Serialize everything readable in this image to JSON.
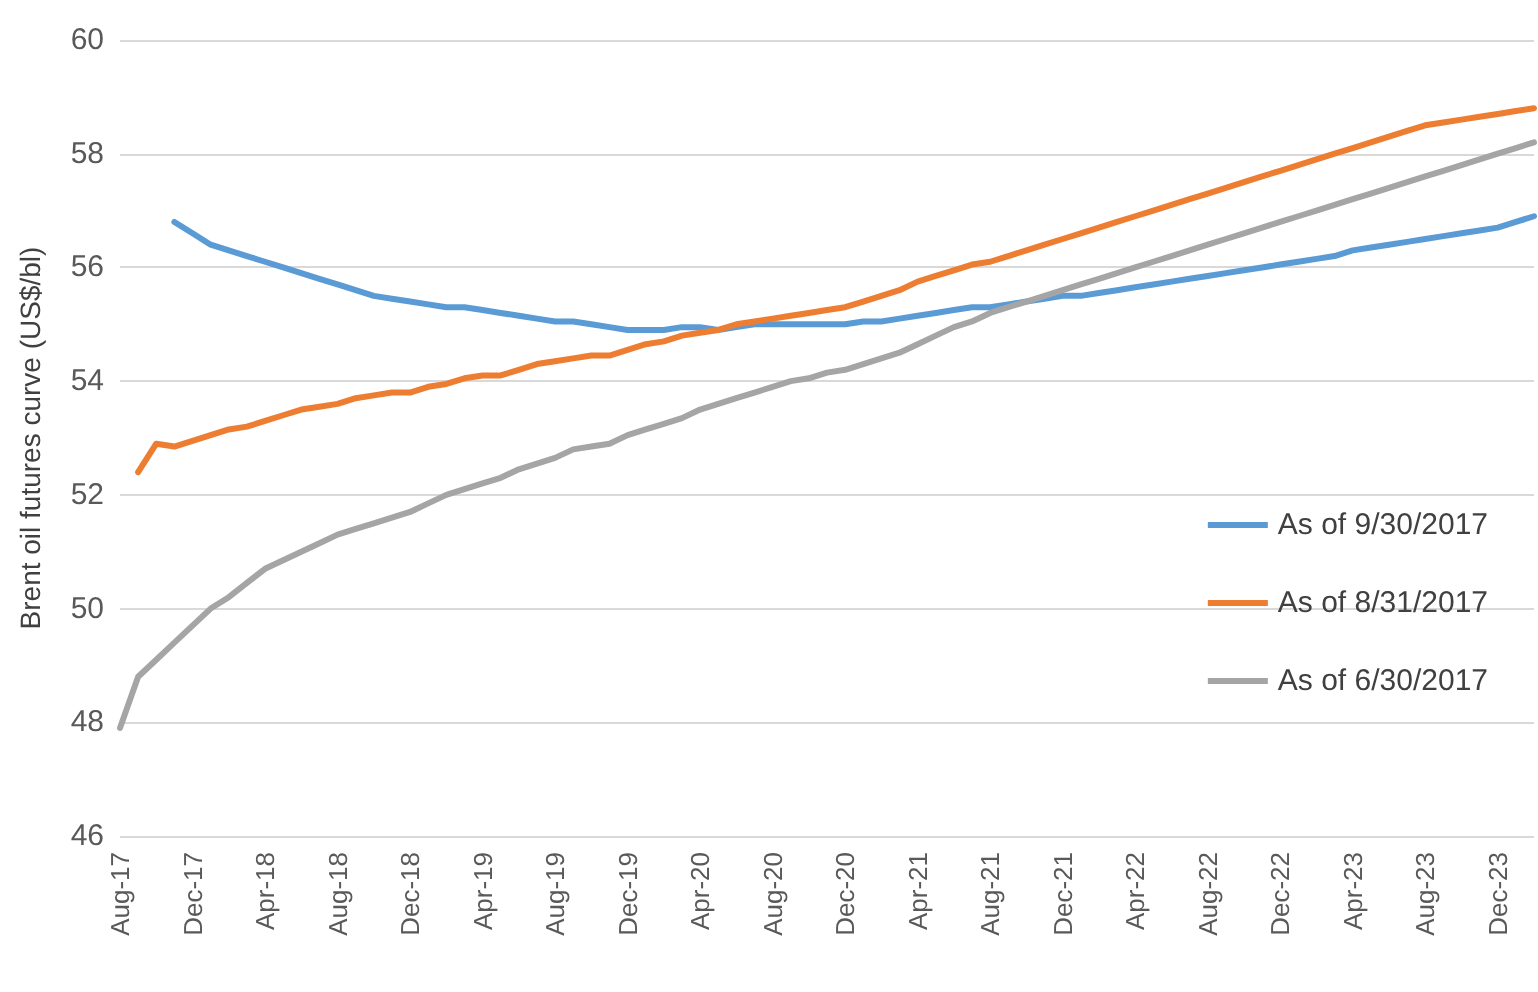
{
  "chart_data": {
    "type": "line",
    "ylabel": "Brent oil futures curve (US$/bl)",
    "categories": [
      "Aug-17",
      null,
      null,
      null,
      "Dec-17",
      null,
      null,
      null,
      "Apr-18",
      null,
      null,
      null,
      "Aug-18",
      null,
      null,
      null,
      "Dec-18",
      null,
      null,
      null,
      "Apr-19",
      null,
      null,
      null,
      "Aug-19",
      null,
      null,
      null,
      "Dec-19",
      null,
      null,
      null,
      "Apr-20",
      null,
      null,
      null,
      "Aug-20",
      null,
      null,
      null,
      "Dec-20",
      null,
      null,
      null,
      "Apr-21",
      null,
      null,
      null,
      "Aug-21",
      null,
      null,
      null,
      "Dec-21",
      null,
      null,
      null,
      "Apr-22",
      null,
      null,
      null,
      "Aug-22",
      null,
      null,
      null,
      "Dec-22",
      null,
      null,
      null,
      "Apr-23",
      null,
      null,
      null,
      "Aug-23",
      null,
      null,
      null,
      "Dec-23",
      null,
      null
    ],
    "series": [
      {
        "name": "As of 9/30/2017",
        "color": "#5b9bd5",
        "values": [
          null,
          null,
          null,
          56.8,
          56.6,
          56.4,
          56.3,
          56.2,
          56.1,
          56.0,
          55.9,
          55.8,
          55.7,
          55.6,
          55.5,
          55.45,
          55.4,
          55.35,
          55.3,
          55.3,
          55.25,
          55.2,
          55.15,
          55.1,
          55.05,
          55.05,
          55.0,
          54.95,
          54.9,
          54.9,
          54.9,
          54.95,
          54.95,
          54.9,
          54.95,
          55.0,
          55.0,
          55.0,
          55.0,
          55.0,
          55.0,
          55.05,
          55.05,
          55.1,
          55.15,
          55.2,
          55.25,
          55.3,
          55.3,
          55.35,
          55.4,
          55.45,
          55.5,
          55.5,
          55.55,
          55.6,
          55.65,
          55.7,
          55.75,
          55.8,
          55.85,
          55.9,
          55.95,
          56.0,
          56.05,
          56.1,
          56.15,
          56.2,
          56.3,
          56.35,
          56.4,
          56.45,
          56.5,
          56.55,
          56.6,
          56.65,
          56.7,
          56.8,
          56.9
        ]
      },
      {
        "name": "As of 8/31/2017",
        "color": "#ed7d31",
        "values": [
          null,
          52.4,
          52.9,
          52.85,
          52.95,
          53.05,
          53.15,
          53.2,
          53.3,
          53.4,
          53.5,
          53.55,
          53.6,
          53.7,
          53.75,
          53.8,
          53.8,
          53.9,
          53.95,
          54.05,
          54.1,
          54.1,
          54.2,
          54.3,
          54.35,
          54.4,
          54.45,
          54.45,
          54.55,
          54.65,
          54.7,
          54.8,
          54.85,
          54.9,
          55.0,
          55.05,
          55.1,
          55.15,
          55.2,
          55.25,
          55.3,
          55.4,
          55.5,
          55.6,
          55.75,
          55.85,
          55.95,
          56.05,
          56.1,
          56.2,
          56.3,
          56.4,
          56.5,
          56.6,
          56.7,
          56.8,
          56.9,
          57.0,
          57.1,
          57.2,
          57.3,
          57.4,
          57.5,
          57.6,
          57.7,
          57.8,
          57.9,
          58.0,
          58.1,
          58.2,
          58.3,
          58.4,
          58.5,
          58.55,
          58.6,
          58.65,
          58.7,
          58.75,
          58.8
        ]
      },
      {
        "name": "As of 6/30/2017",
        "color": "#a5a5a5",
        "values": [
          47.9,
          48.8,
          49.1,
          49.4,
          49.7,
          50.0,
          50.2,
          50.45,
          50.7,
          50.85,
          51.0,
          51.15,
          51.3,
          51.4,
          51.5,
          51.6,
          51.7,
          51.85,
          52.0,
          52.1,
          52.2,
          52.3,
          52.45,
          52.55,
          52.65,
          52.8,
          52.85,
          52.9,
          53.05,
          53.15,
          53.25,
          53.35,
          53.5,
          53.6,
          53.7,
          53.8,
          53.9,
          54.0,
          54.05,
          54.15,
          54.2,
          54.3,
          54.4,
          54.5,
          54.65,
          54.8,
          54.95,
          55.05,
          55.2,
          55.3,
          55.4,
          55.5,
          55.6,
          55.7,
          55.8,
          55.9,
          56.0,
          56.1,
          56.2,
          56.3,
          56.4,
          56.5,
          56.6,
          56.7,
          56.8,
          56.9,
          57.0,
          57.1,
          57.2,
          57.3,
          57.4,
          57.5,
          57.6,
          57.7,
          57.8,
          57.9,
          58.0,
          58.1,
          58.2
        ]
      }
    ],
    "ylim": [
      46,
      60
    ],
    "yticks": [
      46,
      48,
      50,
      52,
      54,
      56,
      58,
      60
    ],
    "grid": "y",
    "legend": "right",
    "marker": "none",
    "line_style": "solid"
  }
}
